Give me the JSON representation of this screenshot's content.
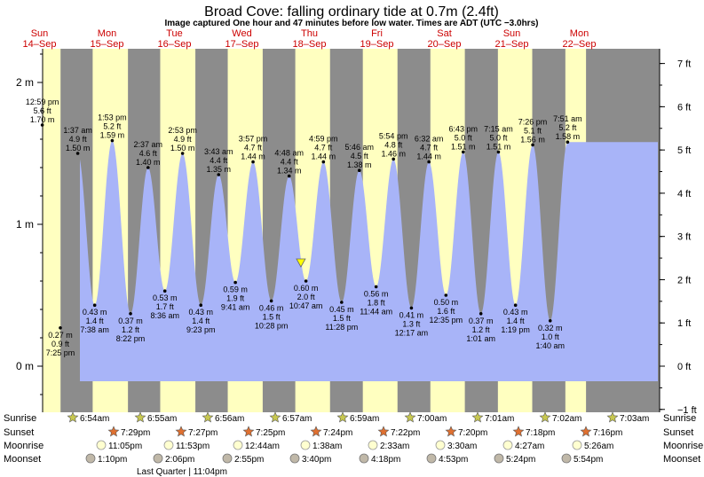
{
  "chart_data": {
    "type": "area",
    "title": "Broad Cove: falling  ordinary tide at 0.7m (2.4ft)",
    "subtitle": "Image captured One hour and 47 minutes before low water. Times are ADT (UTC −3.0hrs)",
    "days": [
      {
        "dow": "Sun",
        "date": "14–Sep"
      },
      {
        "dow": "Mon",
        "date": "15–Sep"
      },
      {
        "dow": "Tue",
        "date": "16–Sep"
      },
      {
        "dow": "Wed",
        "date": "17–Sep"
      },
      {
        "dow": "Thu",
        "date": "18–Sep"
      },
      {
        "dow": "Fri",
        "date": "19–Sep"
      },
      {
        "dow": "Sat",
        "date": "20–Sep"
      },
      {
        "dow": "Sun",
        "date": "21–Sep"
      },
      {
        "dow": "Mon",
        "date": "22–Sep"
      }
    ],
    "y_left": {
      "ticks": [
        0,
        1,
        2
      ],
      "labels": [
        "0 m",
        "1 m",
        "2 m"
      ],
      "range": [
        -0.22,
        2.2
      ]
    },
    "y_right": {
      "ticks": [
        -1,
        0,
        1,
        2,
        3,
        4,
        5,
        6,
        7
      ],
      "labels": [
        "−1 ft",
        "0 ft",
        "1 ft",
        "2 ft",
        "3 ft",
        "4 ft",
        "5 ft",
        "6 ft",
        "7 ft"
      ]
    },
    "tides": [
      {
        "type": "high",
        "time": "12:59 pm",
        "ft": "5.6 ft",
        "m": "1.70 m",
        "value": 1.7,
        "day": 0.541
      },
      {
        "type": "low",
        "time": "7:25 pm",
        "ft": "0.9 ft",
        "m": "0.27 m",
        "value": 0.27,
        "day": 0.809
      },
      {
        "type": "high",
        "time": "1:37 am",
        "ft": "4.9 ft",
        "m": "1.50 m",
        "value": 1.5,
        "day": 1.067
      },
      {
        "type": "low",
        "time": "7:38 am",
        "ft": "1.4 ft",
        "m": "0.43 m",
        "value": 0.43,
        "day": 1.318
      },
      {
        "type": "high",
        "time": "1:53 pm",
        "ft": "5.2 ft",
        "m": "1.59 m",
        "value": 1.59,
        "day": 1.578
      },
      {
        "type": "low",
        "time": "8:22 pm",
        "ft": "1.2 ft",
        "m": "0.37 m",
        "value": 0.37,
        "day": 1.849
      },
      {
        "type": "high",
        "time": "2:37 am",
        "ft": "4.6 ft",
        "m": "1.40 m",
        "value": 1.4,
        "day": 2.109
      },
      {
        "type": "low",
        "time": "8:36 am",
        "ft": "1.7 ft",
        "m": "0.53 m",
        "value": 0.53,
        "day": 2.358
      },
      {
        "type": "high",
        "time": "2:53 pm",
        "ft": "4.9 ft",
        "m": "1.50 m",
        "value": 1.5,
        "day": 2.62
      },
      {
        "type": "low",
        "time": "9:23 pm",
        "ft": "1.4 ft",
        "m": "0.43 m",
        "value": 0.43,
        "day": 2.891
      },
      {
        "type": "high",
        "time": "3:43 am",
        "ft": "4.4 ft",
        "m": "1.35 m",
        "value": 1.35,
        "day": 3.155
      },
      {
        "type": "low",
        "time": "9:41 am",
        "ft": "1.9 ft",
        "m": "0.59 m",
        "value": 0.59,
        "day": 3.403
      },
      {
        "type": "high",
        "time": "3:57 pm",
        "ft": "4.7 ft",
        "m": "1.44 m",
        "value": 1.44,
        "day": 3.665
      },
      {
        "type": "low",
        "time": "10:28 pm",
        "ft": "1.5 ft",
        "m": "0.46 m",
        "value": 0.46,
        "day": 3.936
      },
      {
        "type": "high",
        "time": "4:48 am",
        "ft": "4.4 ft",
        "m": "1.34 m",
        "value": 1.34,
        "day": 4.2
      },
      {
        "type": "low",
        "time": "10:47 am",
        "ft": "2.0 ft",
        "m": "0.60 m",
        "value": 0.6,
        "day": 4.449
      },
      {
        "type": "high",
        "time": "4:59 pm",
        "ft": "4.7 ft",
        "m": "1.44 m",
        "value": 1.44,
        "day": 4.708
      },
      {
        "type": "low",
        "time": "11:28 pm",
        "ft": "1.5 ft",
        "m": "0.45 m",
        "value": 0.45,
        "day": 4.978
      },
      {
        "type": "high",
        "time": "5:46 am",
        "ft": "4.5 ft",
        "m": "1.38 m",
        "value": 1.38,
        "day": 5.24
      },
      {
        "type": "low",
        "time": "11:44 am",
        "ft": "1.8 ft",
        "m": "0.56 m",
        "value": 0.56,
        "day": 5.489
      },
      {
        "type": "high",
        "time": "5:54 pm",
        "ft": "4.8 ft",
        "m": "1.46 m",
        "value": 1.46,
        "day": 5.746
      },
      {
        "type": "low",
        "time": "12:17 am",
        "ft": "1.3 ft",
        "m": "0.41 m",
        "value": 0.41,
        "day": 6.012
      },
      {
        "type": "high",
        "time": "6:32 am",
        "ft": "4.7 ft",
        "m": "1.44 m",
        "value": 1.44,
        "day": 6.272
      },
      {
        "type": "low",
        "time": "12:35 pm",
        "ft": "1.6 ft",
        "m": "0.50 m",
        "value": 0.5,
        "day": 6.524
      },
      {
        "type": "high",
        "time": "6:43 pm",
        "ft": "5.0 ft",
        "m": "1.51 m",
        "value": 1.51,
        "day": 6.78
      },
      {
        "type": "low",
        "time": "1:01 am",
        "ft": "1.2 ft",
        "m": "0.37 m",
        "value": 0.37,
        "day": 7.042
      },
      {
        "type": "high",
        "time": "7:15 am",
        "ft": "5.0 ft",
        "m": "1.51 m",
        "value": 1.51,
        "day": 7.302
      },
      {
        "type": "low",
        "time": "1:19 pm",
        "ft": "1.4 ft",
        "m": "0.43 m",
        "value": 0.43,
        "day": 7.555
      },
      {
        "type": "high",
        "time": "7:26 pm",
        "ft": "5.1 ft",
        "m": "1.56 m",
        "value": 1.56,
        "day": 7.81
      },
      {
        "type": "low",
        "time": "1:40 am",
        "ft": "1.0 ft",
        "m": "0.32 m",
        "value": 0.32,
        "day": 8.069
      },
      {
        "type": "high",
        "time": "7:51 am",
        "ft": "5.2 ft",
        "m": "1.58 m",
        "value": 1.58,
        "day": 8.327
      }
    ],
    "daylight": [
      [
        0.287,
        0.812
      ],
      [
        1.288,
        1.811
      ],
      [
        2.289,
        2.81
      ],
      [
        3.29,
        3.808
      ],
      [
        4.291,
        4.806
      ],
      [
        5.292,
        5.806
      ],
      [
        6.293,
        6.804
      ],
      [
        7.294,
        7.803
      ],
      [
        8.294,
        8.6
      ]
    ],
    "current": {
      "day": 4.374,
      "value": 0.7
    },
    "almanac": {
      "row_labels": {
        "sunrise": "Sunrise",
        "sunset": "Sunset",
        "moonrise": "Moonrise",
        "moonset": "Moonset"
      },
      "sunrise": [
        "6:54am",
        "6:55am",
        "6:56am",
        "6:57am",
        "6:59am",
        "7:00am",
        "7:01am",
        "7:02am",
        "7:03am"
      ],
      "sunset": [
        "7:29pm",
        "7:27pm",
        "7:25pm",
        "7:24pm",
        "7:22pm",
        "7:20pm",
        "7:18pm",
        "7:16pm"
      ],
      "moonrise": [
        "11:05pm",
        "11:53pm",
        "12:44am",
        "1:38am",
        "2:33am",
        "3:30am",
        "4:27am",
        "5:26am"
      ],
      "moonset": [
        "1:10pm",
        "2:06pm",
        "2:55pm",
        "3:40pm",
        "4:18pm",
        "4:53pm",
        "5:24pm",
        "5:54pm"
      ],
      "moonset_day": [
        0,
        1,
        2,
        3,
        4,
        5,
        6,
        7
      ],
      "moonrise_day": [
        0,
        1,
        3,
        4,
        5,
        6,
        7,
        8
      ],
      "phase_label": "Last Quarter | 11:04pm"
    },
    "colors": {
      "night": "#8c8c8c",
      "day": "#ffffc0",
      "water": "#a8b4f8",
      "day_text": "#cc0000",
      "text": "#000000"
    }
  }
}
